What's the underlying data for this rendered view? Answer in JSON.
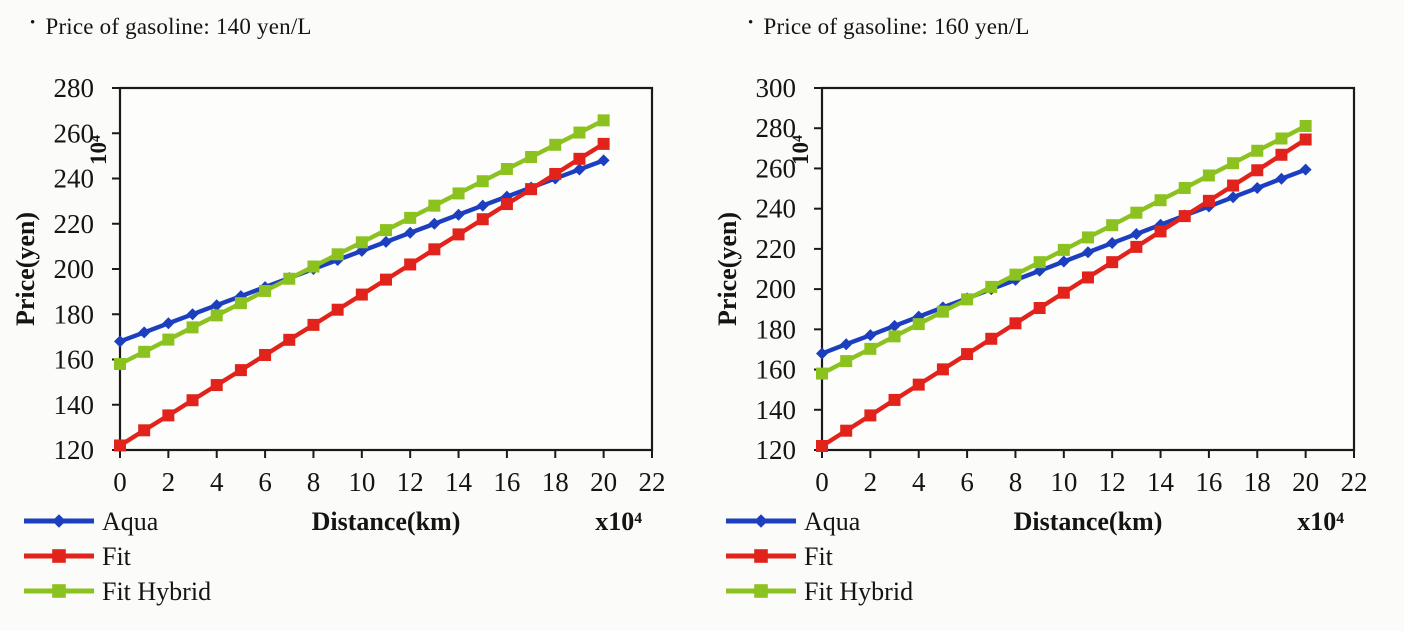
{
  "bullet": "•",
  "chart_data": [
    {
      "type": "line",
      "title": "Price of gasoline: 140 yen/L",
      "xlabel": "Distance(km)",
      "x_unit": "x10⁴",
      "ylabel": "Price(yen)",
      "y_unit": "10⁴",
      "xlim": [
        0,
        22
      ],
      "ylim": [
        120,
        280
      ],
      "xtick_step": 2,
      "ytick_step": 20,
      "grid": false,
      "legend_position": "bottom-left",
      "x": [
        0,
        1,
        2,
        3,
        4,
        5,
        6,
        7,
        8,
        9,
        10,
        11,
        12,
        13,
        14,
        15,
        16,
        17,
        18,
        19,
        20
      ],
      "series": [
        {
          "name": "Aqua",
          "color": "#1c3fc0",
          "marker": "diamond",
          "values": [
            168,
            172,
            176,
            180,
            184,
            188,
            192,
            196,
            200,
            204,
            208,
            212,
            216,
            220,
            224,
            228,
            232,
            236,
            240,
            244,
            248
          ]
        },
        {
          "name": "Fit",
          "color": "#e2231c",
          "marker": "square",
          "values": [
            122,
            128.7,
            135.3,
            142,
            148.7,
            155.3,
            162,
            168.7,
            175.3,
            182,
            188.7,
            195.3,
            202,
            208.7,
            215.3,
            222,
            228.7,
            235.3,
            242,
            248.7,
            255.3
          ]
        },
        {
          "name": "Fit Hybrid",
          "color": "#8cc21f",
          "marker": "square",
          "values": [
            158,
            163.4,
            168.8,
            174.2,
            179.5,
            184.9,
            190.3,
            195.7,
            201.1,
            206.5,
            211.8,
            217.2,
            222.6,
            228,
            233.4,
            238.8,
            244.2,
            249.5,
            254.9,
            260.3,
            265.7
          ]
        }
      ]
    },
    {
      "type": "line",
      "title": "Price of gasoline: 160 yen/L",
      "xlabel": "Distance(km)",
      "x_unit": "x10⁴",
      "ylabel": "Price(yen)",
      "y_unit": "10⁴",
      "xlim": [
        0,
        22
      ],
      "ylim": [
        120,
        300
      ],
      "xtick_step": 2,
      "ytick_step": 20,
      "grid": false,
      "legend_position": "bottom-left",
      "x": [
        0,
        1,
        2,
        3,
        4,
        5,
        6,
        7,
        8,
        9,
        10,
        11,
        12,
        13,
        14,
        15,
        16,
        17,
        18,
        19,
        20
      ],
      "series": [
        {
          "name": "Aqua",
          "color": "#1c3fc0",
          "marker": "diamond",
          "values": [
            168,
            172.6,
            177.1,
            181.7,
            186.3,
            190.9,
            195.4,
            200,
            204.6,
            209.1,
            213.7,
            218.3,
            222.9,
            227.4,
            232,
            236.6,
            241.1,
            245.7,
            250.3,
            254.9,
            259.4
          ]
        },
        {
          "name": "Fit",
          "color": "#e2231c",
          "marker": "square",
          "values": [
            122,
            129.6,
            137.2,
            144.9,
            152.5,
            160.1,
            167.7,
            175.3,
            183,
            190.6,
            198.2,
            205.8,
            213.4,
            221,
            228.7,
            236.3,
            243.9,
            251.5,
            259.1,
            266.8,
            274.4
          ]
        },
        {
          "name": "Fit Hybrid",
          "color": "#8cc21f",
          "marker": "square",
          "values": [
            158,
            164.2,
            170.3,
            176.5,
            182.6,
            188.8,
            194.9,
            201.1,
            207.2,
            213.4,
            219.5,
            225.7,
            231.8,
            238,
            244.2,
            250.3,
            256.5,
            262.6,
            268.8,
            274.9,
            281.1
          ]
        }
      ]
    }
  ]
}
